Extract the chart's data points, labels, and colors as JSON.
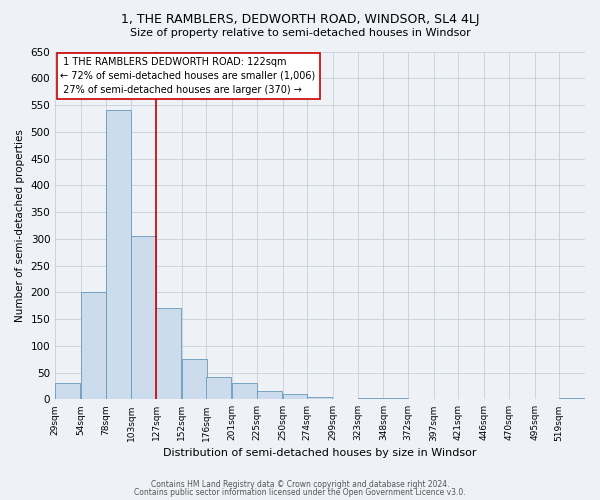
{
  "title": "1, THE RAMBLERS, DEDWORTH ROAD, WINDSOR, SL4 4LJ",
  "subtitle": "Size of property relative to semi-detached houses in Windsor",
  "xlabel": "Distribution of semi-detached houses by size in Windsor",
  "ylabel": "Number of semi-detached properties",
  "bin_labels": [
    "29sqm",
    "54sqm",
    "78sqm",
    "103sqm",
    "127sqm",
    "152sqm",
    "176sqm",
    "201sqm",
    "225sqm",
    "250sqm",
    "274sqm",
    "299sqm",
    "323sqm",
    "348sqm",
    "372sqm",
    "397sqm",
    "421sqm",
    "446sqm",
    "470sqm",
    "495sqm",
    "519sqm"
  ],
  "bar_values": [
    30,
    200,
    540,
    305,
    170,
    75,
    42,
    30,
    15,
    10,
    5,
    0,
    2,
    2,
    0,
    0,
    0,
    0,
    0,
    0,
    2
  ],
  "bar_color": "#ccdcec",
  "bar_edge_color": "#6699bb",
  "property_line_label": "1 THE RAMBLERS DEDWORTH ROAD: 122sqm",
  "smaller_pct": 72,
  "smaller_count": 1006,
  "larger_pct": 27,
  "larger_count": 370,
  "ylim": [
    0,
    650
  ],
  "yticks": [
    0,
    50,
    100,
    150,
    200,
    250,
    300,
    350,
    400,
    450,
    500,
    550,
    600,
    650
  ],
  "annotation_box_edge": "#cc0000",
  "red_line_color": "#cc0000",
  "footer1": "Contains HM Land Registry data © Crown copyright and database right 2024.",
  "footer2": "Contains public sector information licensed under the Open Government Licence v3.0.",
  "bg_color": "#eef2f7"
}
